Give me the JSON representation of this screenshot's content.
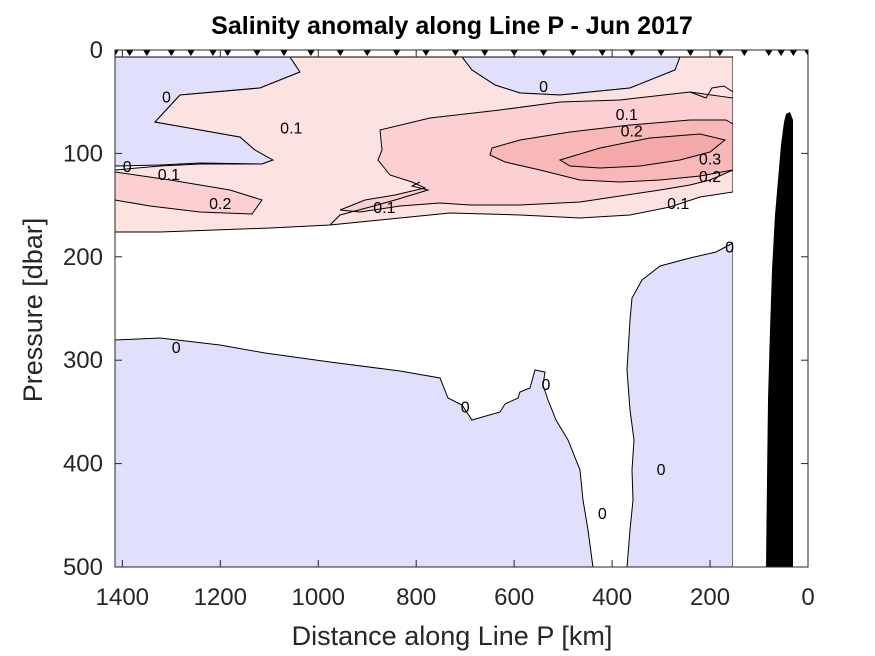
{
  "chart_data": {
    "type": "heatmap",
    "title": "Salinity anomaly along Line P - Jun 2017",
    "xlabel": "Distance along Line P [km]",
    "ylabel": "Pressure [dbar]",
    "xlim": [
      1415,
      0
    ],
    "ylim": [
      500,
      0
    ],
    "x_reversed": true,
    "y_reversed": true,
    "xticks": [
      "1400",
      "1200",
      "1000",
      "800",
      "600",
      "400",
      "200",
      "0"
    ],
    "xtick_values": [
      1400,
      1200,
      1000,
      800,
      600,
      400,
      200,
      0
    ],
    "yticks": [
      "0",
      "100",
      "200",
      "300",
      "400",
      "500"
    ],
    "ytick_values": [
      0,
      100,
      200,
      300,
      400,
      500
    ],
    "contour_levels": [
      0,
      0.1,
      0.2,
      0.3
    ],
    "colors": {
      "negative": "#e0e0fc",
      "positive_0_0.1": "#fde2e2",
      "positive_0.1_0.2": "#fcd0d0",
      "positive_0.2_0.3": "#f8b8b8",
      "positive_0.3": "#f5a8a8",
      "bathymetry": "#000000"
    },
    "station_distances_km": [
      1415,
      1385,
      1350,
      1300,
      1260,
      1215,
      1185,
      1125,
      1070,
      1015,
      955,
      900,
      840,
      780,
      720,
      660,
      600,
      540,
      480,
      420,
      360,
      300,
      240,
      180,
      130,
      80,
      55,
      30,
      0
    ],
    "data_gap_km": [
      120,
      60
    ],
    "contour_labels": [
      {
        "text": "0",
        "x": 1310,
        "y": 45
      },
      {
        "text": "0.1",
        "x": 1055,
        "y": 75
      },
      {
        "text": "0",
        "x": 1390,
        "y": 112
      },
      {
        "text": "0.1",
        "x": 1305,
        "y": 120
      },
      {
        "text": "0.2",
        "x": 1200,
        "y": 148
      },
      {
        "text": "0.1",
        "x": 865,
        "y": 152
      },
      {
        "text": "0",
        "x": 540,
        "y": 35
      },
      {
        "text": "0.1",
        "x": 370,
        "y": 62
      },
      {
        "text": "0.2",
        "x": 360,
        "y": 78
      },
      {
        "text": "0.3",
        "x": 200,
        "y": 105
      },
      {
        "text": "0.2",
        "x": 200,
        "y": 122
      },
      {
        "text": "0.1",
        "x": 265,
        "y": 148
      },
      {
        "text": "0",
        "x": 160,
        "y": 190
      },
      {
        "text": "0",
        "x": 1290,
        "y": 287
      },
      {
        "text": "0",
        "x": 700,
        "y": 345
      },
      {
        "text": "0",
        "x": 535,
        "y": 323
      },
      {
        "text": "0",
        "x": 300,
        "y": 405
      },
      {
        "text": "0",
        "x": 420,
        "y": 448
      }
    ],
    "grid": false,
    "legend": "none"
  }
}
